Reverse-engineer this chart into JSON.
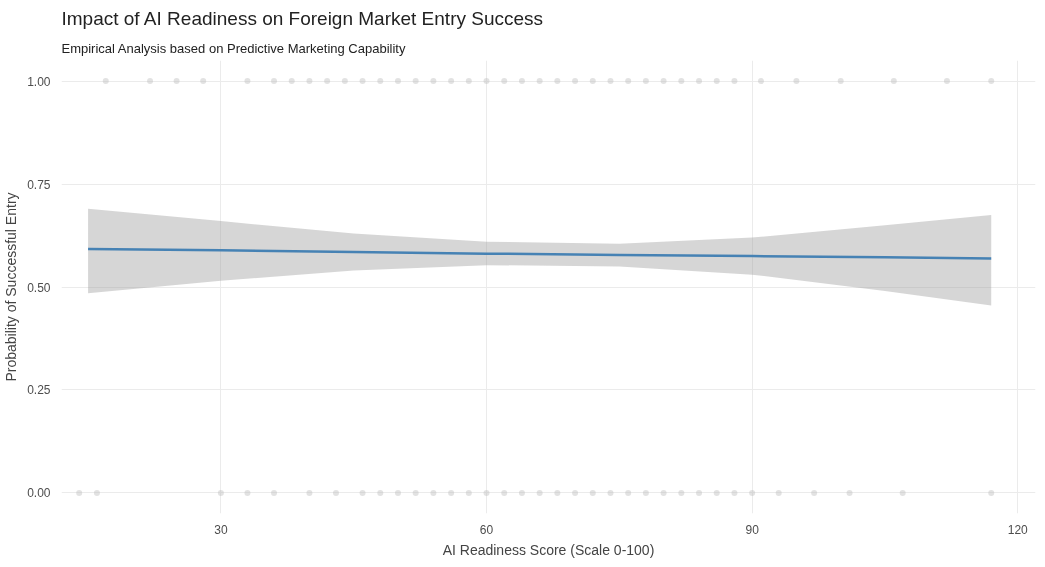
{
  "chart_data": {
    "type": "line",
    "title": "Impact of AI Readiness on Foreign Market Entry Success",
    "subtitle": "Empirical Analysis based on Predictive Marketing Capability",
    "xlabel": "AI Readiness Score (Scale 0-100)",
    "ylabel": "Probability of Successful Entry",
    "xlim": [
      12,
      122
    ],
    "ylim": [
      -0.05,
      1.05
    ],
    "xticks": [
      30,
      60,
      90,
      120
    ],
    "yticks": [
      {
        "value": 0,
        "label": "0.00"
      },
      {
        "value": 0.25,
        "label": "0.25"
      },
      {
        "value": 0.5,
        "label": "0.50"
      },
      {
        "value": 0.75,
        "label": "0.75"
      },
      {
        "value": 1,
        "label": "1.00"
      }
    ],
    "grid": true,
    "series": [
      {
        "type": "scatter",
        "color": "#bfbfbf",
        "marker": "circle",
        "x": [
          17,
          22,
          25,
          28,
          33,
          36,
          38,
          40,
          42,
          44,
          46,
          48,
          50,
          52,
          54,
          56,
          58,
          60,
          62,
          64,
          66,
          68,
          70,
          72,
          74,
          76,
          78,
          80,
          82,
          84,
          86,
          88,
          91,
          95,
          100,
          106,
          112,
          117,
          14,
          16,
          30,
          33,
          36,
          40,
          43,
          46,
          48,
          50,
          52,
          54,
          56,
          58,
          60,
          62,
          64,
          66,
          68,
          70,
          72,
          74,
          76,
          78,
          80,
          82,
          84,
          86,
          88,
          90,
          93,
          97,
          101,
          107,
          117
        ],
        "values": [
          1,
          1,
          1,
          1,
          1,
          1,
          1,
          1,
          1,
          1,
          1,
          1,
          1,
          1,
          1,
          1,
          1,
          1,
          1,
          1,
          1,
          1,
          1,
          1,
          1,
          1,
          1,
          1,
          1,
          1,
          1,
          1,
          1,
          1,
          1,
          1,
          1,
          1,
          0,
          0,
          0,
          0,
          0,
          0,
          0,
          0,
          0,
          0,
          0,
          0,
          0,
          0,
          0,
          0,
          0,
          0,
          0,
          0,
          0,
          0,
          0,
          0,
          0,
          0,
          0,
          0,
          0,
          0,
          0,
          0,
          0,
          0,
          0
        ]
      },
      {
        "color": "#4682b4",
        "line_style": "solid",
        "x": [
          15,
          30,
          45,
          60,
          75,
          90,
          105,
          117
        ],
        "values": [
          0.592,
          0.589,
          0.585,
          0.581,
          0.578,
          0.575,
          0.572,
          0.569
        ],
        "lower": [
          0.485,
          0.515,
          0.54,
          0.553,
          0.55,
          0.53,
          0.49,
          0.455
        ],
        "upper": [
          0.69,
          0.66,
          0.63,
          0.61,
          0.605,
          0.62,
          0.65,
          0.675
        ]
      }
    ]
  }
}
